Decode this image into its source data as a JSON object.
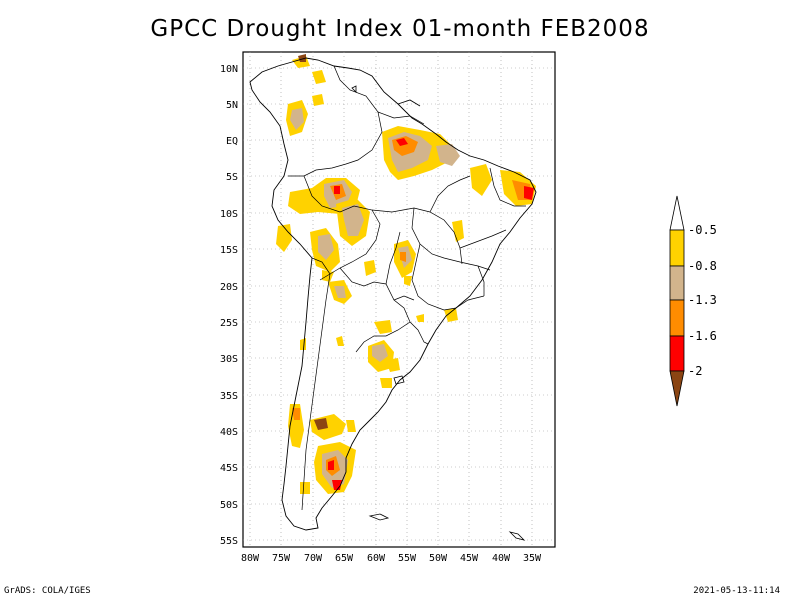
{
  "title": "GPCC Drought Index 01-month FEB2008",
  "lat_labels": [
    "10N",
    "5N",
    "EQ",
    "5S",
    "10S",
    "15S",
    "20S",
    "25S",
    "30S",
    "35S",
    "40S",
    "45S",
    "50S",
    "55S"
  ],
  "lon_labels": [
    "80W",
    "75W",
    "70W",
    "65W",
    "60W",
    "55W",
    "50W",
    "45W",
    "40W",
    "35W"
  ],
  "legend": {
    "labels": [
      "-0.5",
      "-0.8",
      "-1.3",
      "-1.6",
      "-2"
    ],
    "colors": {
      "white": "#ffffff",
      "yellow": "#ffd200",
      "tan": "#d2b48c",
      "orange": "#ff8c00",
      "red": "#ff0000",
      "brown": "#8b4513"
    }
  },
  "footer": {
    "left": "GrADS: COLA/IGES",
    "right": "2021-05-13-11:14"
  }
}
